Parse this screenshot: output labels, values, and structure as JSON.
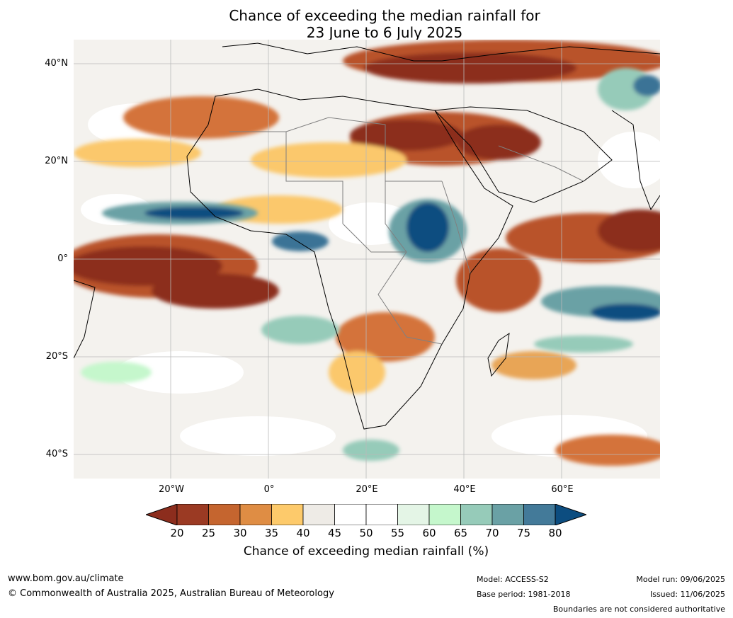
{
  "title": {
    "line1": "Chance of exceeding the median rainfall for",
    "line2": "23 June to 6 July 2025"
  },
  "map": {
    "lat_labels": [
      "40°N",
      "20°N",
      "0°",
      "20°S",
      "40°S"
    ],
    "lon_labels": [
      "20°W",
      "0°",
      "20°E",
      "40°E",
      "60°E"
    ],
    "colors": {
      "very_dry": "#8c2d1d",
      "dry": "#b9522b",
      "dry_mid": "#d4733a",
      "dry_light": "#e8a557",
      "dry_pale": "#fbc86c",
      "neutral_grey": "#eeebe6",
      "neutral": "#ffffff",
      "wet_pale": "#e4f5e6",
      "wet_light": "#c5f7cc",
      "wet_mid": "#96cbb9",
      "wet": "#6aa1a5",
      "very_wet": "#3a7396",
      "extreme_wet": "#0c4d80"
    }
  },
  "colorbar": {
    "ticks": [
      "20",
      "25",
      "30",
      "35",
      "40",
      "45",
      "50",
      "55",
      "60",
      "65",
      "70",
      "75",
      "80"
    ],
    "colors": [
      "#9b3a23",
      "#c5652f",
      "#df8d44",
      "#fdca6b",
      "#eeebe6",
      "#ffffff",
      "#ffffff",
      "#e4f5e6",
      "#c5f7cc",
      "#96cbb9",
      "#6aa1a5",
      "#437a99"
    ],
    "under_color": "#8c2d1d",
    "over_color": "#0c4d80",
    "label": "Chance of exceeding median rainfall (%)"
  },
  "footer": {
    "website": "www.bom.gov.au/climate",
    "copyright": "© Commonwealth of Australia 2025, Australian Bureau of Meteorology",
    "model": "Model: ACCESS-S2",
    "base_period": "Base period: 1981-2018",
    "model_run": "Model run: 09/06/2025",
    "issued": "Issued: 11/06/2025",
    "disclaimer": "Boundaries are not considered authoritative"
  }
}
